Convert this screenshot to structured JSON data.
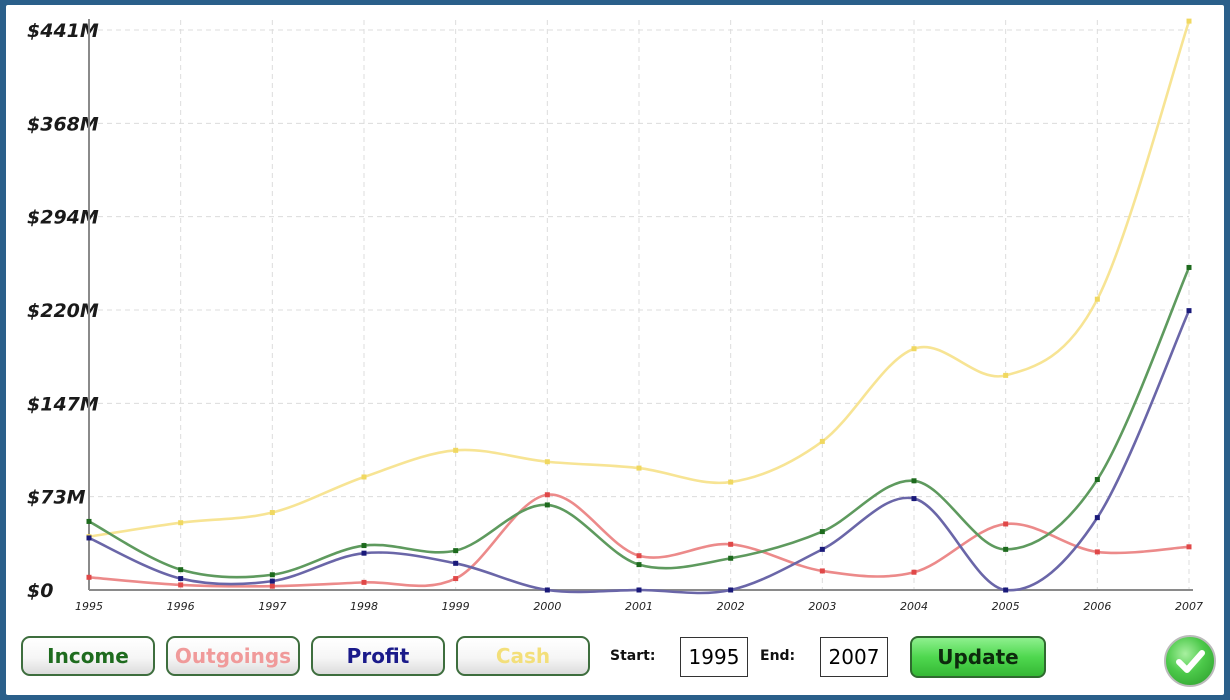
{
  "chart_data": {
    "type": "line",
    "x": [
      "1995",
      "1996",
      "1997",
      "1998",
      "1999",
      "2000",
      "2001",
      "2002",
      "2003",
      "2004",
      "2005",
      "2006",
      "2007"
    ],
    "y_ticks": [
      "$0",
      "$73M",
      "$147M",
      "$220M",
      "$294M",
      "$368M",
      "$441M"
    ],
    "y_tick_values": [
      0,
      73.5,
      147,
      220.5,
      294,
      367.5,
      441
    ],
    "ylim": [
      0,
      441
    ],
    "grid": true,
    "series": [
      {
        "name": "Income",
        "color": "#5e9a5e",
        "values": [
          54,
          16,
          12,
          35,
          31,
          67,
          20,
          25,
          46,
          86,
          32,
          87,
          254
        ]
      },
      {
        "name": "Outgoings",
        "color": "#ec8a8a",
        "values": [
          10,
          4,
          3,
          6,
          9,
          75,
          27,
          36,
          15,
          14,
          52,
          30,
          34
        ]
      },
      {
        "name": "Profit",
        "color": "#6a66a8",
        "values": [
          41,
          9,
          7,
          29,
          21,
          0,
          0,
          0,
          32,
          72,
          0,
          57,
          220
        ]
      },
      {
        "name": "Cash",
        "color": "#f7e494",
        "values": [
          42,
          53,
          61,
          89,
          110,
          101,
          96,
          85,
          117,
          190,
          169,
          229,
          448
        ]
      }
    ]
  },
  "legend": {
    "income": {
      "label": "Income",
      "color": "#1e6b1e"
    },
    "outgoings": {
      "label": "Outgoings",
      "color": "#f09a9a"
    },
    "profit": {
      "label": "Profit",
      "color": "#1a1a8a"
    },
    "cash": {
      "label": "Cash",
      "color": "#f3df7a"
    }
  },
  "controls": {
    "start_label": "Start:",
    "start_value": "1995",
    "end_label": "End:",
    "end_value": "2007",
    "update_label": "Update"
  }
}
